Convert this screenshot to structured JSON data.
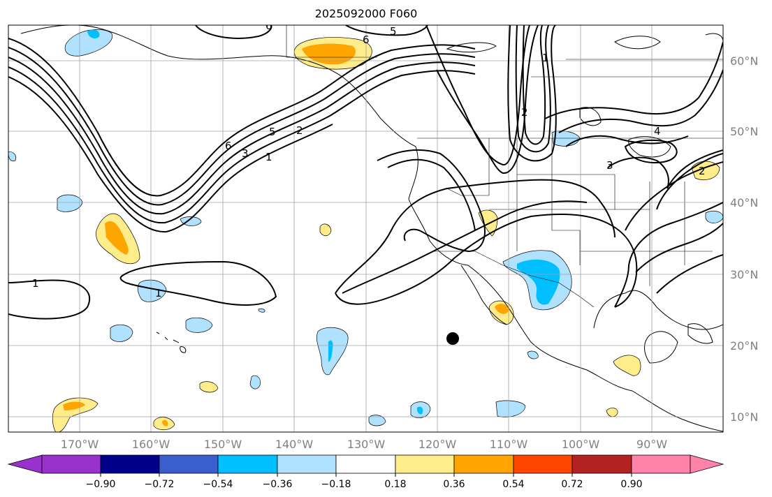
{
  "title": "2025092000 F060",
  "map": {
    "lat_labels": [
      "60°N",
      "50°N",
      "40°N",
      "30°N",
      "20°N",
      "10°N"
    ],
    "lon_labels": [
      "170°W",
      "160°W",
      "150°W",
      "140°W",
      "130°W",
      "120°W",
      "110°W",
      "100°W",
      "90°W"
    ],
    "contour_labels": [
      "6",
      "5",
      "6",
      "1",
      "2",
      "3",
      "4",
      "1",
      "1",
      "6",
      "3",
      "1",
      "5",
      "2",
      "1",
      "2",
      "3"
    ],
    "grid_color": "#a0a0a0",
    "marker": {
      "lat": 21,
      "lon": -118,
      "label": "point-marker"
    }
  },
  "colorbar": {
    "tick_labels": [
      "−0.90",
      "−0.72",
      "−0.54",
      "−0.36",
      "−0.18",
      "0.18",
      "0.36",
      "0.54",
      "0.72",
      "0.90"
    ],
    "colors": [
      "#9932cc",
      "#00008b",
      "#3a5fcd",
      "#00bfff",
      "#b0e2ff",
      "#ffffff",
      "#ffec8b",
      "#ffa500",
      "#ff4500",
      "#b22222",
      "#ff82ab"
    ]
  }
}
